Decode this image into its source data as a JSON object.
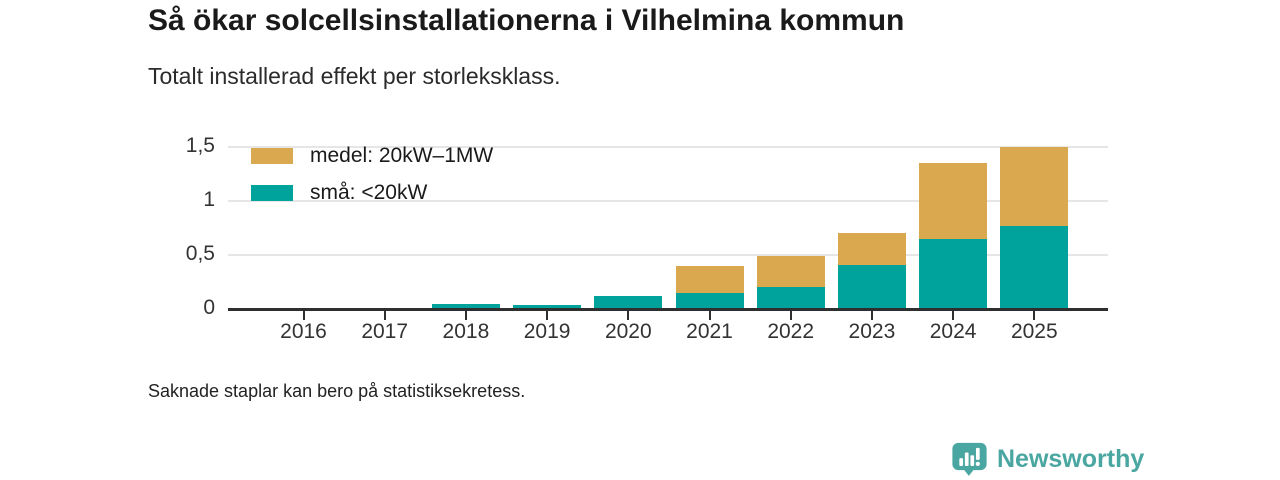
{
  "header": {
    "title": "Så ökar solcellsinstallationerna i Vilhelmina kommun",
    "subtitle": "Totalt installerad effekt per storleksklass."
  },
  "footer": {
    "note": "Saknade staplar kan bero på statistiksekretess."
  },
  "branding": {
    "logo_text": "Newsworthy",
    "logo_icon": "bar-chart-speech-bubble-icon",
    "logo_color": "#4AA6A0"
  },
  "colors": {
    "medel": "#DAA94F",
    "sma": "#00A39B",
    "axis": "#2F2F2F",
    "grid": "#E6E6E6",
    "title_text": "#1A1A1A",
    "background": "#FFFFFF"
  },
  "chart_data": {
    "type": "bar",
    "stacked": true,
    "title": "Så ökar solcellsinstallationerna i Vilhelmina kommun",
    "subtitle": "Totalt installerad effekt per storleksklass.",
    "footnote": "Saknade staplar kan bero på statistiksekretess.",
    "categories": [
      "2016",
      "2017",
      "2018",
      "2019",
      "2020",
      "2021",
      "2022",
      "2023",
      "2024",
      "2025"
    ],
    "series": [
      {
        "name": "medel: 20kW–1MW",
        "color": "#DAA94F",
        "values": [
          0,
          0,
          0,
          0,
          0,
          0.25,
          0.29,
          0.3,
          0.7,
          0.73
        ]
      },
      {
        "name": "små: <20kW",
        "color": "#00A39B",
        "values": [
          0,
          0,
          0.05,
          0.04,
          0.12,
          0.15,
          0.2,
          0.41,
          0.65,
          0.77
        ]
      }
    ],
    "stack_order_bottom_to_top": [
      "små: <20kW",
      "medel: 20kW–1MW"
    ],
    "totals": [
      0,
      0,
      0.05,
      0.04,
      0.12,
      0.4,
      0.49,
      0.71,
      1.35,
      1.5
    ],
    "xlabel": "",
    "ylabel": "",
    "ylim": [
      0,
      1.5
    ],
    "yticks": [
      {
        "value": 0,
        "label": "0"
      },
      {
        "value": 0.5,
        "label": "0,5"
      },
      {
        "value": 1,
        "label": "1"
      },
      {
        "value": 1.5,
        "label": "1,5"
      }
    ],
    "grid": true,
    "legend_position": "top-left"
  }
}
